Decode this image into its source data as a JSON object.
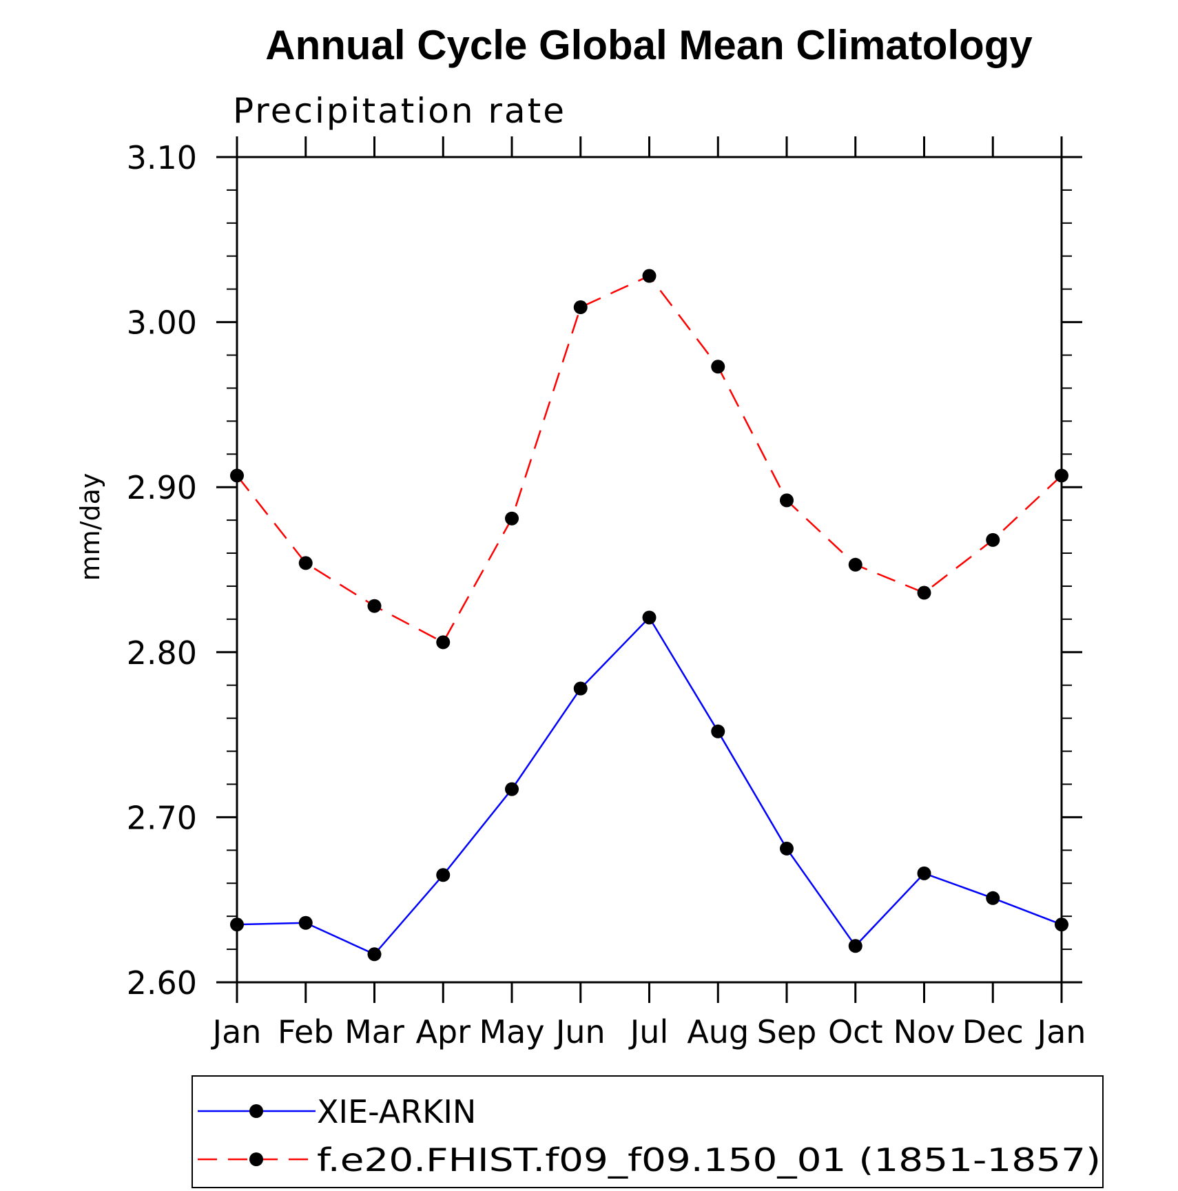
{
  "chart_data": {
    "type": "line",
    "title": "Annual Cycle Global Mean Climatology",
    "subtitle": "Precipitation rate",
    "xlabel": "",
    "ylabel": "mm/day",
    "categories": [
      "Jan",
      "Feb",
      "Mar",
      "Apr",
      "May",
      "Jun",
      "Jul",
      "Aug",
      "Sep",
      "Oct",
      "Nov",
      "Dec",
      "Jan"
    ],
    "ylim": [
      2.6,
      3.1
    ],
    "y_ticks": [
      "2.60",
      "2.70",
      "2.80",
      "2.90",
      "3.00",
      "3.10"
    ],
    "y_minor_step": 0.02,
    "grid": false,
    "legend_position": "bottom",
    "series": [
      {
        "name": "XIE-ARKIN",
        "color": "#0000ff",
        "line_style": "solid",
        "marker": "filled-circle",
        "values": [
          2.635,
          2.636,
          2.617,
          2.665,
          2.717,
          2.778,
          2.821,
          2.752,
          2.681,
          2.622,
          2.666,
          2.651,
          2.635
        ]
      },
      {
        "name": "f.e20.FHIST.f09_f09.150_01 (1851-1857)",
        "color": "#ff0000",
        "line_style": "dashed",
        "marker": "filled-circle",
        "values": [
          2.907,
          2.854,
          2.828,
          2.806,
          2.881,
          3.009,
          3.028,
          2.973,
          2.892,
          2.853,
          2.836,
          2.868,
          2.907
        ]
      }
    ]
  }
}
